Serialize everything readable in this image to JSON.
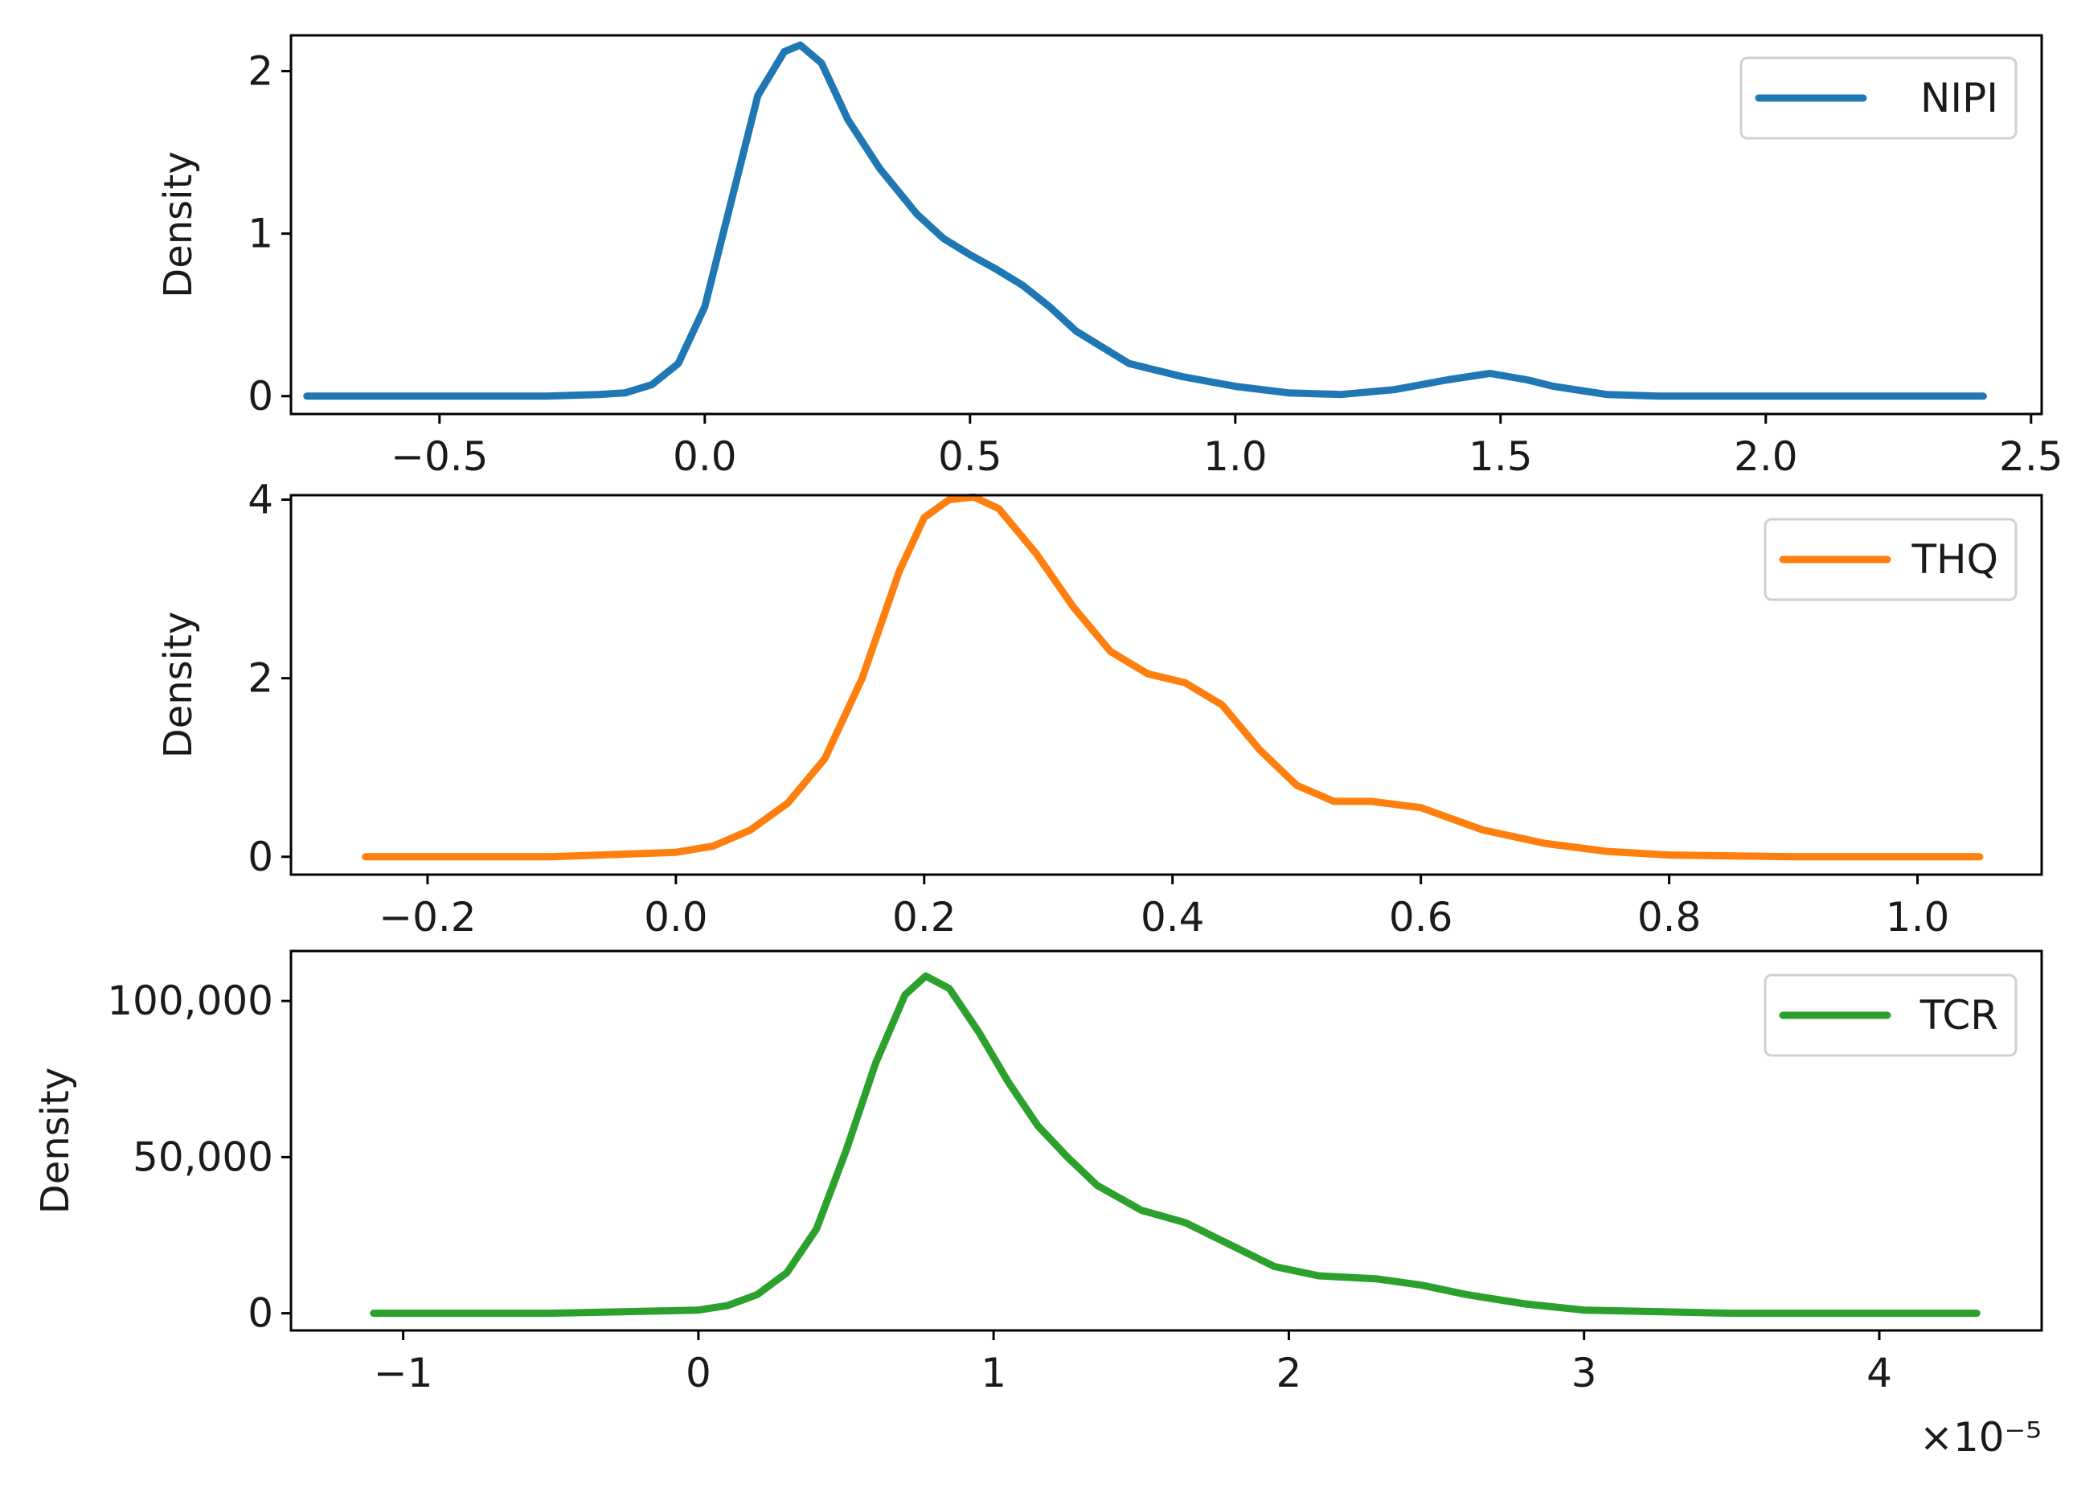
{
  "chart_data": [
    {
      "type": "line",
      "title": "",
      "xlabel": "",
      "ylabel": "Density",
      "xlim": [
        -0.78,
        2.52
      ],
      "ylim": [
        -0.11,
        2.22
      ],
      "x_ticks": [
        -0.5,
        0.0,
        0.5,
        1.0,
        1.5,
        2.0,
        2.5
      ],
      "x_tick_labels": [
        "−0.5",
        "0.0",
        "0.5",
        "1.0",
        "1.5",
        "2.0",
        "2.5"
      ],
      "y_ticks": [
        0,
        1,
        2
      ],
      "y_tick_labels": [
        "0",
        "1",
        "2"
      ],
      "grid": false,
      "legend_position": "top-right",
      "series": [
        {
          "name": "NIPI",
          "color": "#1f77b4",
          "x": [
            -0.75,
            -0.5,
            -0.3,
            -0.2,
            -0.15,
            -0.1,
            -0.05,
            0.0,
            0.05,
            0.1,
            0.15,
            0.18,
            0.22,
            0.27,
            0.33,
            0.4,
            0.45,
            0.5,
            0.55,
            0.6,
            0.65,
            0.7,
            0.75,
            0.8,
            0.9,
            1.0,
            1.1,
            1.2,
            1.3,
            1.4,
            1.48,
            1.55,
            1.6,
            1.7,
            1.8,
            2.0,
            2.2,
            2.41
          ],
          "y": [
            0.0,
            0.0,
            0.0,
            0.01,
            0.02,
            0.07,
            0.2,
            0.55,
            1.2,
            1.85,
            2.12,
            2.16,
            2.05,
            1.7,
            1.4,
            1.12,
            0.97,
            0.87,
            0.78,
            0.68,
            0.55,
            0.4,
            0.3,
            0.2,
            0.12,
            0.06,
            0.02,
            0.01,
            0.04,
            0.1,
            0.14,
            0.1,
            0.06,
            0.01,
            0.0,
            0.0,
            0.0,
            0.0
          ]
        }
      ]
    },
    {
      "type": "line",
      "title": "",
      "xlabel": "",
      "ylabel": "Density",
      "xlim": [
        -0.31,
        1.1
      ],
      "ylim": [
        -0.2,
        4.05
      ],
      "x_ticks": [
        -0.2,
        0.0,
        0.2,
        0.4,
        0.6,
        0.8,
        1.0
      ],
      "x_tick_labels": [
        "−0.2",
        "0.0",
        "0.2",
        "0.4",
        "0.6",
        "0.8",
        "1.0"
      ],
      "y_ticks": [
        0,
        2,
        4
      ],
      "y_tick_labels": [
        "0",
        "2",
        "4"
      ],
      "grid": false,
      "legend_position": "top-right",
      "series": [
        {
          "name": "THQ",
          "color": "#ff7f0e",
          "x": [
            -0.25,
            -0.1,
            0.0,
            0.03,
            0.06,
            0.09,
            0.12,
            0.15,
            0.18,
            0.2,
            0.22,
            0.24,
            0.26,
            0.29,
            0.32,
            0.35,
            0.38,
            0.41,
            0.44,
            0.47,
            0.5,
            0.53,
            0.56,
            0.6,
            0.65,
            0.7,
            0.75,
            0.8,
            0.9,
            1.05
          ],
          "y": [
            0.0,
            0.0,
            0.05,
            0.12,
            0.3,
            0.6,
            1.1,
            2.0,
            3.2,
            3.8,
            4.0,
            4.03,
            3.9,
            3.4,
            2.8,
            2.3,
            2.05,
            1.95,
            1.7,
            1.2,
            0.8,
            0.62,
            0.62,
            0.55,
            0.3,
            0.15,
            0.06,
            0.02,
            0.0,
            0.0
          ]
        }
      ]
    },
    {
      "type": "line",
      "title": "",
      "xlabel": "",
      "ylabel": "Density",
      "x_exponent_label": "×10⁻⁵",
      "xlim": [
        -1.38,
        4.55
      ],
      "ylim": [
        -5500,
        116000
      ],
      "x_ticks": [
        -1,
        0,
        1,
        2,
        3,
        4
      ],
      "x_tick_labels": [
        "−1",
        "0",
        "1",
        "2",
        "3",
        "4"
      ],
      "y_ticks": [
        0,
        50000,
        100000
      ],
      "y_tick_labels": [
        "0",
        "50,000",
        "100,000"
      ],
      "grid": false,
      "legend_position": "top-right",
      "series": [
        {
          "name": "TCR",
          "color": "#2ca02c",
          "x": [
            -1.1,
            -0.5,
            0.0,
            0.1,
            0.2,
            0.3,
            0.4,
            0.5,
            0.6,
            0.7,
            0.77,
            0.85,
            0.95,
            1.05,
            1.15,
            1.25,
            1.35,
            1.5,
            1.65,
            1.8,
            1.95,
            2.1,
            2.3,
            2.45,
            2.6,
            2.8,
            3.0,
            3.5,
            4.33
          ],
          "y": [
            0,
            0,
            1000,
            2500,
            6000,
            13000,
            27000,
            52000,
            80000,
            102000,
            108000,
            104000,
            90000,
            74000,
            60000,
            50000,
            41000,
            33000,
            29000,
            22000,
            15000,
            12000,
            11000,
            9000,
            6000,
            3000,
            1000,
            0,
            0
          ]
        }
      ]
    }
  ]
}
